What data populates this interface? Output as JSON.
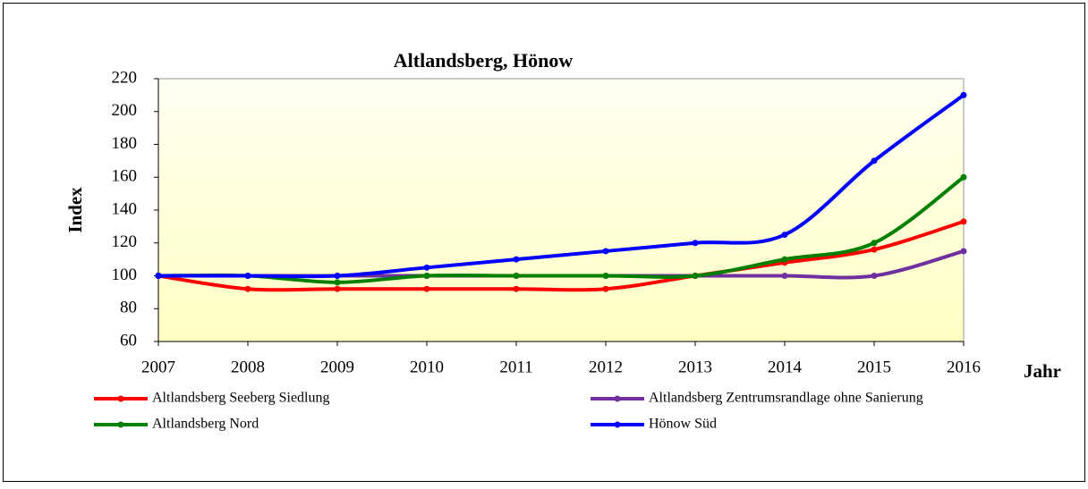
{
  "chart_data": {
    "type": "line",
    "title": "Altlandsberg,  Hönow",
    "x_label": "Jahr",
    "y_label": "Index",
    "categories": [
      "2007",
      "2008",
      "2009",
      "2010",
      "2011",
      "2012",
      "2013",
      "2014",
      "2015",
      "2016"
    ],
    "series": [
      {
        "name": "Altlandsberg Seeberg Siedlung",
        "color": "#ff0000",
        "values": [
          100,
          92,
          92,
          92,
          92,
          92,
          100,
          108,
          116,
          133
        ]
      },
      {
        "name": "Altlandsberg Zentrumsrandlage ohne Sanierung",
        "color": "#7030a0",
        "values": [
          100,
          100,
          100,
          100,
          100,
          100,
          100,
          100,
          100,
          115
        ]
      },
      {
        "name": "Altlandsberg Nord",
        "color": "#008000",
        "values": [
          100,
          100,
          96,
          100,
          100,
          100,
          100,
          110,
          120,
          160
        ]
      },
      {
        "name": "Hönow Süd",
        "color": "#0000ff",
        "values": [
          100,
          100,
          100,
          105,
          110,
          115,
          120,
          125,
          170,
          210
        ]
      }
    ],
    "ylim": [
      60,
      220
    ],
    "yticks": [
      60,
      80,
      100,
      120,
      140,
      160,
      180,
      200,
      220
    ],
    "grid": false
  }
}
